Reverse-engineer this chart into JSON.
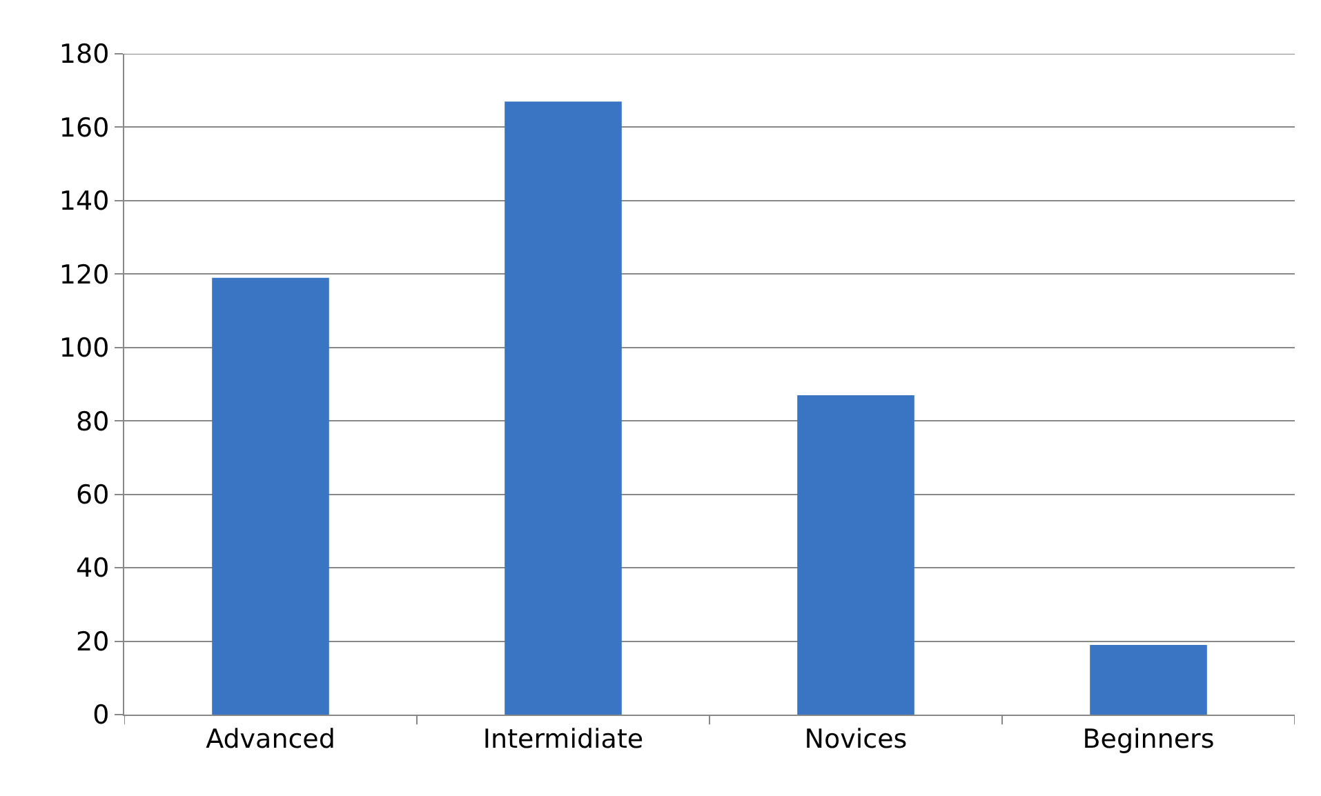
{
  "chart_data": {
    "type": "bar",
    "categories": [
      "Advanced",
      "Intermidiate",
      "Novices",
      "Beginners"
    ],
    "values": [
      119,
      167,
      87,
      19
    ],
    "color": "#3a75c4",
    "ylim": [
      0,
      180
    ],
    "yticks": [
      0,
      20,
      40,
      60,
      80,
      100,
      120,
      140,
      160,
      180
    ],
    "grid": "y"
  }
}
